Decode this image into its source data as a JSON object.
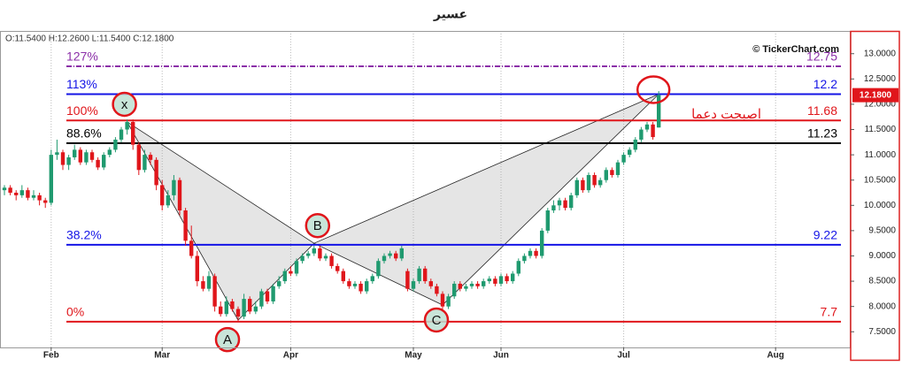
{
  "chart_data": {
    "type": "candlestick",
    "title": "عسير",
    "ohlc_header": "O:11.5400  H:12.2600  L:11.5400  C:12.1800",
    "source": "© TickerChart.com",
    "annotation": "اصبحت دعما",
    "up_color": "#1f9a6f",
    "down_color": "#e0161b",
    "ylim": [
      7.19,
      13.45
    ],
    "yticks": [
      {
        "value": 7.5,
        "label": "7.5000"
      },
      {
        "value": 8,
        "label": "8.0000"
      },
      {
        "value": 8.5,
        "label": "8.5000"
      },
      {
        "value": 9,
        "label": "9.0000"
      },
      {
        "value": 9.5,
        "label": "9.5000"
      },
      {
        "value": 10,
        "label": "10.0000"
      },
      {
        "value": 10.5,
        "label": "10.5000"
      },
      {
        "value": 11,
        "label": "11.0000"
      },
      {
        "value": 11.5,
        "label": "11.5000"
      },
      {
        "value": 12,
        "label": "12.0000"
      },
      {
        "value": 12.5,
        "label": "12.5000"
      },
      {
        "value": 13,
        "label": "13.0000"
      }
    ],
    "xlim": [
      -0.76,
      144.7
    ],
    "xticks": [
      {
        "value": 8,
        "label": "Feb"
      },
      {
        "value": 27,
        "label": "Mar"
      },
      {
        "value": 49,
        "label": "Apr"
      },
      {
        "value": 70,
        "label": "May"
      },
      {
        "value": 85,
        "label": "Jun"
      },
      {
        "value": 106,
        "label": "Jul"
      },
      {
        "value": 132,
        "label": "Aug"
      }
    ],
    "x_grid": true,
    "last_price": {
      "value": 12.18,
      "label": "12.1800",
      "color": "#e0161b"
    },
    "levels": [
      {
        "name": "127%",
        "value": 12.75,
        "color": "#8b2fa8",
        "style": "dashdot"
      },
      {
        "name": "113%",
        "value": 12.2,
        "color": "#1414e6",
        "style": "solid"
      },
      {
        "name": "100%",
        "value": 11.68,
        "color": "#e0161b",
        "style": "solid"
      },
      {
        "name": "88.6%",
        "value": 11.23,
        "color": "#000000",
        "style": "solid"
      },
      {
        "name": "38.2%",
        "value": 9.22,
        "color": "#1414e6",
        "style": "solid"
      },
      {
        "name": "0%",
        "value": 7.7,
        "color": "#e0161b",
        "style": "solid"
      }
    ],
    "pattern": [
      {
        "label": "x",
        "index": 21,
        "value": 11.65
      },
      {
        "label": "A",
        "index": 40,
        "value": 7.73
      },
      {
        "label": "B",
        "index": 53,
        "value": 9.25
      },
      {
        "label": "C",
        "index": 75,
        "value": 8.03
      },
      {
        "index": 112,
        "value": 12.2
      }
    ],
    "candles": [
      [
        10.3,
        10.4,
        10.2,
        10.35
      ],
      [
        10.35,
        10.4,
        10.2,
        10.25
      ],
      [
        10.25,
        10.3,
        10.1,
        10.2
      ],
      [
        10.2,
        10.4,
        10.15,
        10.3
      ],
      [
        10.3,
        10.35,
        10.1,
        10.15
      ],
      [
        10.15,
        10.3,
        10.1,
        10.2
      ],
      [
        10.2,
        10.25,
        10.0,
        10.1
      ],
      [
        10.1,
        10.15,
        9.95,
        10.05
      ],
      [
        10.05,
        11.1,
        10.0,
        11.0
      ],
      [
        11.0,
        11.3,
        10.9,
        11.05
      ],
      [
        11.05,
        11.1,
        10.7,
        10.8
      ],
      [
        10.8,
        11.0,
        10.7,
        10.95
      ],
      [
        10.95,
        11.2,
        10.9,
        11.1
      ],
      [
        11.1,
        11.15,
        10.8,
        10.85
      ],
      [
        10.85,
        11.1,
        10.8,
        11.05
      ],
      [
        11.05,
        11.1,
        10.85,
        10.9
      ],
      [
        10.9,
        10.95,
        10.7,
        10.75
      ],
      [
        10.75,
        11.05,
        10.7,
        11.0
      ],
      [
        11.0,
        11.15,
        10.95,
        11.1
      ],
      [
        11.1,
        11.35,
        11.05,
        11.3
      ],
      [
        11.3,
        11.55,
        11.25,
        11.5
      ],
      [
        11.5,
        11.7,
        11.4,
        11.65
      ],
      [
        11.65,
        11.7,
        11.1,
        11.2
      ],
      [
        11.2,
        11.25,
        10.6,
        10.7
      ],
      [
        10.7,
        11.1,
        10.65,
        11.0
      ],
      [
        11.0,
        11.05,
        10.8,
        10.9
      ],
      [
        10.9,
        10.95,
        10.3,
        10.4
      ],
      [
        10.4,
        10.5,
        9.9,
        10.0
      ],
      [
        10.0,
        10.3,
        9.95,
        10.2
      ],
      [
        10.2,
        10.6,
        10.1,
        10.5
      ],
      [
        10.5,
        10.55,
        9.8,
        9.9
      ],
      [
        9.9,
        9.95,
        9.2,
        9.3
      ],
      [
        9.3,
        9.6,
        8.95,
        9.0
      ],
      [
        9.0,
        9.1,
        8.4,
        8.5
      ],
      [
        8.5,
        8.6,
        8.3,
        8.35
      ],
      [
        8.35,
        8.7,
        8.3,
        8.6
      ],
      [
        8.6,
        8.65,
        7.9,
        8.0
      ],
      [
        8.0,
        8.1,
        7.8,
        7.85
      ],
      [
        7.85,
        8.2,
        7.8,
        8.1
      ],
      [
        8.1,
        8.15,
        7.9,
        7.95
      ],
      [
        7.95,
        8.0,
        7.7,
        7.8
      ],
      [
        7.8,
        8.25,
        7.75,
        8.15
      ],
      [
        8.15,
        8.2,
        7.85,
        7.9
      ],
      [
        7.9,
        8.1,
        7.85,
        8.0
      ],
      [
        8.0,
        8.35,
        7.95,
        8.3
      ],
      [
        8.3,
        8.35,
        8.05,
        8.1
      ],
      [
        8.1,
        8.45,
        8.05,
        8.4
      ],
      [
        8.4,
        8.6,
        8.35,
        8.5
      ],
      [
        8.5,
        8.75,
        8.45,
        8.7
      ],
      [
        8.7,
        8.8,
        8.6,
        8.65
      ],
      [
        8.65,
        8.95,
        8.6,
        8.9
      ],
      [
        8.9,
        9.05,
        8.85,
        9.0
      ],
      [
        9.0,
        9.1,
        8.95,
        9.05
      ],
      [
        9.05,
        9.2,
        9.0,
        9.15
      ],
      [
        9.15,
        9.2,
        8.9,
        8.95
      ],
      [
        8.95,
        9.05,
        8.9,
        9.0
      ],
      [
        9.0,
        9.05,
        8.75,
        8.8
      ],
      [
        8.8,
        8.85,
        8.65,
        8.7
      ],
      [
        8.7,
        8.75,
        8.45,
        8.5
      ],
      [
        8.5,
        8.55,
        8.35,
        8.4
      ],
      [
        8.4,
        8.5,
        8.35,
        8.45
      ],
      [
        8.45,
        8.5,
        8.25,
        8.3
      ],
      [
        8.3,
        8.55,
        8.25,
        8.5
      ],
      [
        8.5,
        8.65,
        8.45,
        8.6
      ],
      [
        8.6,
        8.95,
        8.55,
        8.9
      ],
      [
        8.9,
        9.05,
        8.85,
        9.0
      ],
      [
        9.0,
        9.1,
        8.95,
        9.05
      ],
      [
        9.05,
        9.1,
        8.9,
        8.95
      ],
      [
        8.95,
        9.2,
        8.9,
        9.15
      ],
      [
        8.7,
        8.75,
        8.3,
        8.35
      ],
      [
        8.35,
        8.55,
        8.3,
        8.5
      ],
      [
        8.5,
        8.8,
        8.45,
        8.75
      ],
      [
        8.75,
        8.8,
        8.45,
        8.5
      ],
      [
        8.5,
        8.55,
        8.35,
        8.4
      ],
      [
        8.4,
        8.45,
        8.2,
        8.25
      ],
      [
        8.25,
        8.3,
        7.95,
        8.0
      ],
      [
        8.0,
        8.25,
        7.95,
        8.2
      ],
      [
        8.2,
        8.5,
        8.15,
        8.45
      ],
      [
        8.45,
        8.5,
        8.3,
        8.35
      ],
      [
        8.35,
        8.45,
        8.3,
        8.4
      ],
      [
        8.4,
        8.5,
        8.35,
        8.45
      ],
      [
        8.45,
        8.5,
        8.35,
        8.4
      ],
      [
        8.4,
        8.55,
        8.35,
        8.5
      ],
      [
        8.5,
        8.6,
        8.45,
        8.55
      ],
      [
        8.55,
        8.6,
        8.4,
        8.45
      ],
      [
        8.45,
        8.65,
        8.4,
        8.6
      ],
      [
        8.6,
        8.65,
        8.45,
        8.5
      ],
      [
        8.5,
        8.7,
        8.45,
        8.65
      ],
      [
        8.65,
        8.95,
        8.6,
        8.9
      ],
      [
        8.9,
        9.05,
        8.85,
        9.0
      ],
      [
        9.0,
        9.15,
        8.95,
        9.1
      ],
      [
        9.1,
        9.15,
        8.95,
        9.0
      ],
      [
        9.0,
        9.55,
        8.95,
        9.5
      ],
      [
        9.5,
        9.95,
        9.45,
        9.9
      ],
      [
        9.9,
        10.1,
        9.85,
        10.0
      ],
      [
        10.0,
        10.15,
        9.9,
        10.1
      ],
      [
        10.1,
        10.15,
        9.9,
        9.95
      ],
      [
        9.95,
        10.25,
        9.9,
        10.2
      ],
      [
        10.2,
        10.55,
        10.15,
        10.5
      ],
      [
        10.5,
        10.55,
        10.25,
        10.3
      ],
      [
        10.3,
        10.65,
        10.25,
        10.6
      ],
      [
        10.6,
        10.65,
        10.35,
        10.4
      ],
      [
        10.4,
        10.55,
        10.35,
        10.5
      ],
      [
        10.5,
        10.75,
        10.45,
        10.7
      ],
      [
        10.7,
        10.75,
        10.55,
        10.6
      ],
      [
        10.6,
        10.9,
        10.55,
        10.85
      ],
      [
        10.85,
        11.05,
        10.8,
        11.0
      ],
      [
        11.0,
        11.15,
        10.95,
        11.1
      ],
      [
        11.1,
        11.35,
        11.05,
        11.3
      ],
      [
        11.3,
        11.55,
        11.25,
        11.5
      ],
      [
        11.5,
        11.65,
        11.45,
        11.6
      ],
      [
        11.6,
        11.65,
        11.3,
        11.35
      ],
      [
        11.54,
        12.26,
        11.54,
        12.18
      ]
    ]
  }
}
